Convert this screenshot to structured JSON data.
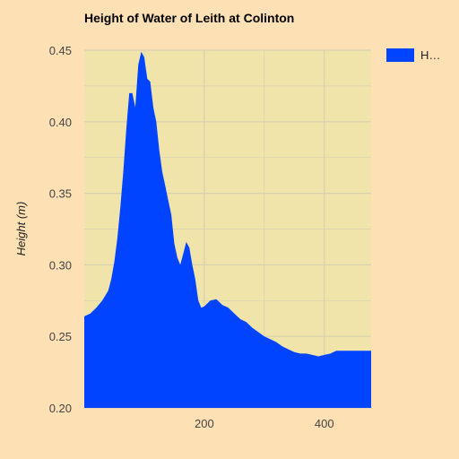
{
  "chart_data": {
    "type": "area",
    "title": "Height of Water of Leith at Colinton",
    "xlabel": "",
    "ylabel": "Height (m)",
    "xlim": [
      0,
      478
    ],
    "ylim": [
      0.2,
      0.45
    ],
    "x_ticks": [
      200,
      400
    ],
    "x_tick_labels": [
      "200",
      "400"
    ],
    "y_ticks": [
      0.2,
      0.25,
      0.3,
      0.35,
      0.4,
      0.45
    ],
    "y_tick_labels": [
      "0.20",
      "0.25",
      "0.30",
      "0.35",
      "0.40",
      "0.45"
    ],
    "grid": true,
    "legend_position": "top-right",
    "legend_label": "H…",
    "colors": {
      "series": "#0044ff",
      "plot_background": "#f0e4aa",
      "page_background": "#fde0b4",
      "gridline": "#d8d0b0"
    },
    "series": [
      {
        "x": [
          0,
          10,
          20,
          30,
          40,
          45,
          50,
          55,
          60,
          65,
          70,
          75,
          80,
          85,
          90,
          95,
          100,
          105,
          110,
          115,
          120,
          125,
          130,
          135,
          140,
          145,
          150,
          155,
          160,
          165,
          170,
          175,
          180,
          185,
          190,
          195,
          200,
          210,
          220,
          230,
          240,
          250,
          260,
          270,
          280,
          290,
          300,
          310,
          320,
          330,
          340,
          350,
          360,
          370,
          380,
          390,
          400,
          410,
          420,
          430,
          440,
          450,
          460,
          470,
          478
        ],
        "values": [
          0.264,
          0.266,
          0.27,
          0.275,
          0.282,
          0.29,
          0.302,
          0.318,
          0.34,
          0.365,
          0.395,
          0.42,
          0.42,
          0.41,
          0.44,
          0.449,
          0.445,
          0.43,
          0.428,
          0.41,
          0.4,
          0.38,
          0.365,
          0.355,
          0.345,
          0.335,
          0.315,
          0.305,
          0.3,
          0.308,
          0.316,
          0.312,
          0.3,
          0.29,
          0.275,
          0.27,
          0.271,
          0.275,
          0.276,
          0.272,
          0.27,
          0.266,
          0.262,
          0.26,
          0.256,
          0.253,
          0.25,
          0.248,
          0.246,
          0.243,
          0.241,
          0.239,
          0.238,
          0.238,
          0.237,
          0.236,
          0.237,
          0.238,
          0.24,
          0.24,
          0.24,
          0.24,
          0.24,
          0.24,
          0.24
        ]
      }
    ]
  }
}
